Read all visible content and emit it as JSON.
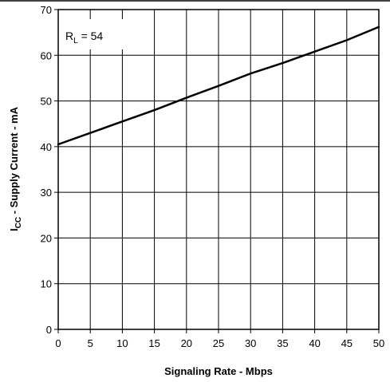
{
  "chart_data": {
    "type": "line",
    "xlabel": "Signaling Rate - Mbps",
    "ylabel": {
      "main": "I",
      "sub": "CC",
      "rest": " - Supply Current - mA"
    },
    "annotation": {
      "main": "R",
      "sub": "L",
      "rest": " = 54"
    },
    "xlim": [
      0,
      50
    ],
    "ylim": [
      0,
      70
    ],
    "grid": true,
    "xticks": [
      0,
      5,
      10,
      15,
      20,
      25,
      30,
      35,
      40,
      45,
      50
    ],
    "yticks": [
      0,
      10,
      20,
      30,
      40,
      50,
      60,
      70
    ],
    "series": [
      {
        "x": [
          0,
          5,
          10,
          15,
          20,
          25,
          30,
          35,
          40,
          45,
          50
        ],
        "y": [
          40.5,
          43.0,
          45.5,
          48.0,
          50.7,
          53.3,
          56.0,
          58.3,
          60.8,
          63.3,
          66.2
        ]
      }
    ]
  }
}
